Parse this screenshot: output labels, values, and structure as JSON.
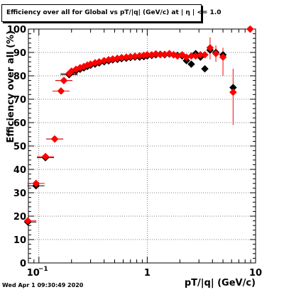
{
  "chart_data": {
    "type": "scatter",
    "title": "Efficiency over all for Global vs pT/|q| (GeV/c) at |  η | <= 1.0",
    "xlabel": "pT/|q| (GeV/c)",
    "ylabel": "Efficiency over all (%)",
    "x_scale": "log",
    "xlim": [
      0.08,
      10
    ],
    "ylim": [
      0,
      100
    ],
    "x_tick_labels": [
      "10^-1",
      "1",
      "10"
    ],
    "y_tick_labels": [
      "0",
      "10",
      "20",
      "30",
      "40",
      "50",
      "60",
      "70",
      "80",
      "90",
      "100"
    ],
    "grid": true,
    "series": [
      {
        "color": "#000000",
        "marker": "diamond",
        "points": [
          [
            0.079,
            17.5
          ],
          [
            0.094,
            33.0
          ],
          [
            0.115,
            45.0
          ],
          [
            0.14,
            53.0
          ],
          [
            0.16,
            73.5
          ],
          [
            0.17,
            78.0
          ],
          [
            0.19,
            80.5
          ],
          [
            0.2,
            81.5
          ],
          [
            0.22,
            82.2
          ],
          [
            0.24,
            82.8
          ],
          [
            0.26,
            83.4
          ],
          [
            0.28,
            84.0
          ],
          [
            0.3,
            84.5
          ],
          [
            0.33,
            85.0
          ],
          [
            0.36,
            85.5
          ],
          [
            0.4,
            86.0
          ],
          [
            0.44,
            86.4
          ],
          [
            0.48,
            86.8
          ],
          [
            0.53,
            87.0
          ],
          [
            0.58,
            87.3
          ],
          [
            0.64,
            87.5
          ],
          [
            0.7,
            87.8
          ],
          [
            0.77,
            88.0
          ],
          [
            0.85,
            88.0
          ],
          [
            0.93,
            88.2
          ],
          [
            1.0,
            88.5
          ],
          [
            1.1,
            88.7
          ],
          [
            1.2,
            89.0
          ],
          [
            1.32,
            89.2
          ],
          [
            1.45,
            89.0
          ],
          [
            1.6,
            89.3
          ],
          [
            1.75,
            89.0
          ],
          [
            1.9,
            88.8
          ],
          [
            2.1,
            88.5
          ],
          [
            2.3,
            86.5
          ],
          [
            2.55,
            85.0
          ],
          [
            2.8,
            89.5
          ],
          [
            3.1,
            88.0
          ],
          [
            3.4,
            83.0
          ],
          [
            3.8,
            91.0
          ],
          [
            4.3,
            90.0
          ],
          [
            5.0,
            89.0
          ],
          [
            6.2,
            75.0
          ]
        ]
      },
      {
        "color": "#ff0000",
        "marker": "diamond",
        "points": [
          [
            0.079,
            18.0
          ],
          [
            0.094,
            34.0
          ],
          [
            0.115,
            45.5
          ],
          [
            0.14,
            53.0
          ],
          [
            0.16,
            73.5
          ],
          [
            0.17,
            78.0
          ],
          [
            0.19,
            81.0
          ],
          [
            0.2,
            82.0
          ],
          [
            0.22,
            82.8
          ],
          [
            0.24,
            83.5
          ],
          [
            0.26,
            84.0
          ],
          [
            0.28,
            84.6
          ],
          [
            0.3,
            85.0
          ],
          [
            0.33,
            85.6
          ],
          [
            0.36,
            86.0
          ],
          [
            0.4,
            86.5
          ],
          [
            0.44,
            86.9
          ],
          [
            0.48,
            87.2
          ],
          [
            0.53,
            87.5
          ],
          [
            0.58,
            87.8
          ],
          [
            0.64,
            88.0
          ],
          [
            0.7,
            88.2
          ],
          [
            0.77,
            88.4
          ],
          [
            0.85,
            88.6
          ],
          [
            0.93,
            88.8
          ],
          [
            1.0,
            89.0
          ],
          [
            1.1,
            89.0
          ],
          [
            1.2,
            89.4
          ],
          [
            1.32,
            89.0
          ],
          [
            1.45,
            89.2
          ],
          [
            1.6,
            89.5
          ],
          [
            1.75,
            89.0
          ],
          [
            1.9,
            88.5
          ],
          [
            2.1,
            89.0
          ],
          [
            2.3,
            88.0
          ],
          [
            2.55,
            88.5
          ],
          [
            2.8,
            88.5
          ],
          [
            3.1,
            89.0
          ],
          [
            3.4,
            89.0
          ],
          [
            3.8,
            92.0
          ],
          [
            4.3,
            89.5
          ],
          [
            5.0,
            88.0
          ],
          [
            6.2,
            73.0
          ],
          [
            8.9,
            100.0
          ]
        ]
      }
    ],
    "red_error_bars": [
      {
        "x": 3.8,
        "low": 87.0,
        "high": 96.5
      },
      {
        "x": 4.3,
        "low": 86.0,
        "high": 93.0
      },
      {
        "x": 5.0,
        "low": 80.0,
        "high": 92.0
      },
      {
        "x": 6.2,
        "low": 59.0,
        "high": 83.0
      }
    ]
  },
  "timestamp": "Wed Apr  1 09:30:49 2020"
}
